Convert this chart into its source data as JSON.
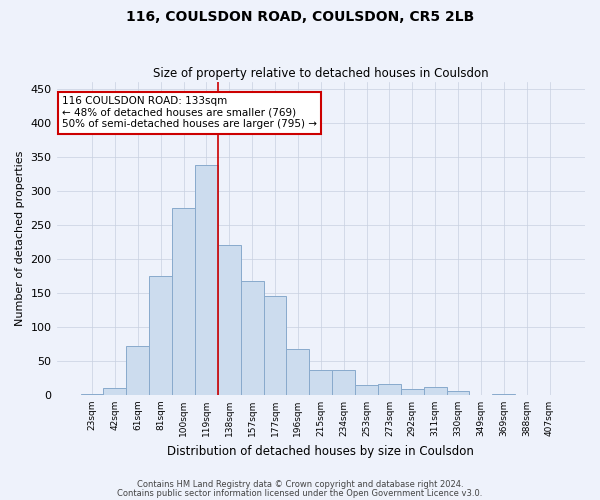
{
  "title": "116, COULSDON ROAD, COULSDON, CR5 2LB",
  "subtitle": "Size of property relative to detached houses in Coulsdon",
  "xlabel": "Distribution of detached houses by size in Coulsdon",
  "ylabel": "Number of detached properties",
  "bar_color": "#ccdcee",
  "bar_edge_color": "#88aacc",
  "background_color": "#eef2fb",
  "categories": [
    "23sqm",
    "42sqm",
    "61sqm",
    "81sqm",
    "100sqm",
    "119sqm",
    "138sqm",
    "157sqm",
    "177sqm",
    "196sqm",
    "215sqm",
    "234sqm",
    "253sqm",
    "273sqm",
    "292sqm",
    "311sqm",
    "330sqm",
    "349sqm",
    "369sqm",
    "388sqm",
    "407sqm"
  ],
  "values": [
    2,
    10,
    72,
    175,
    275,
    338,
    221,
    167,
    145,
    68,
    36,
    36,
    15,
    16,
    9,
    12,
    6,
    0,
    1,
    0,
    0
  ],
  "ylim": [
    0,
    460
  ],
  "yticks": [
    0,
    50,
    100,
    150,
    200,
    250,
    300,
    350,
    400,
    450
  ],
  "annotation_text": "116 COULSDON ROAD: 133sqm\n← 48% of detached houses are smaller (769)\n50% of semi-detached houses are larger (795) →",
  "annotation_box_color": "#ffffff",
  "annotation_box_edge": "#cc0000",
  "footer_line1": "Contains HM Land Registry data © Crown copyright and database right 2024.",
  "footer_line2": "Contains public sector information licensed under the Open Government Licence v3.0.",
  "vline_color": "#cc0000",
  "vline_x_bin": 5,
  "grid_color": "#c8d0e0"
}
